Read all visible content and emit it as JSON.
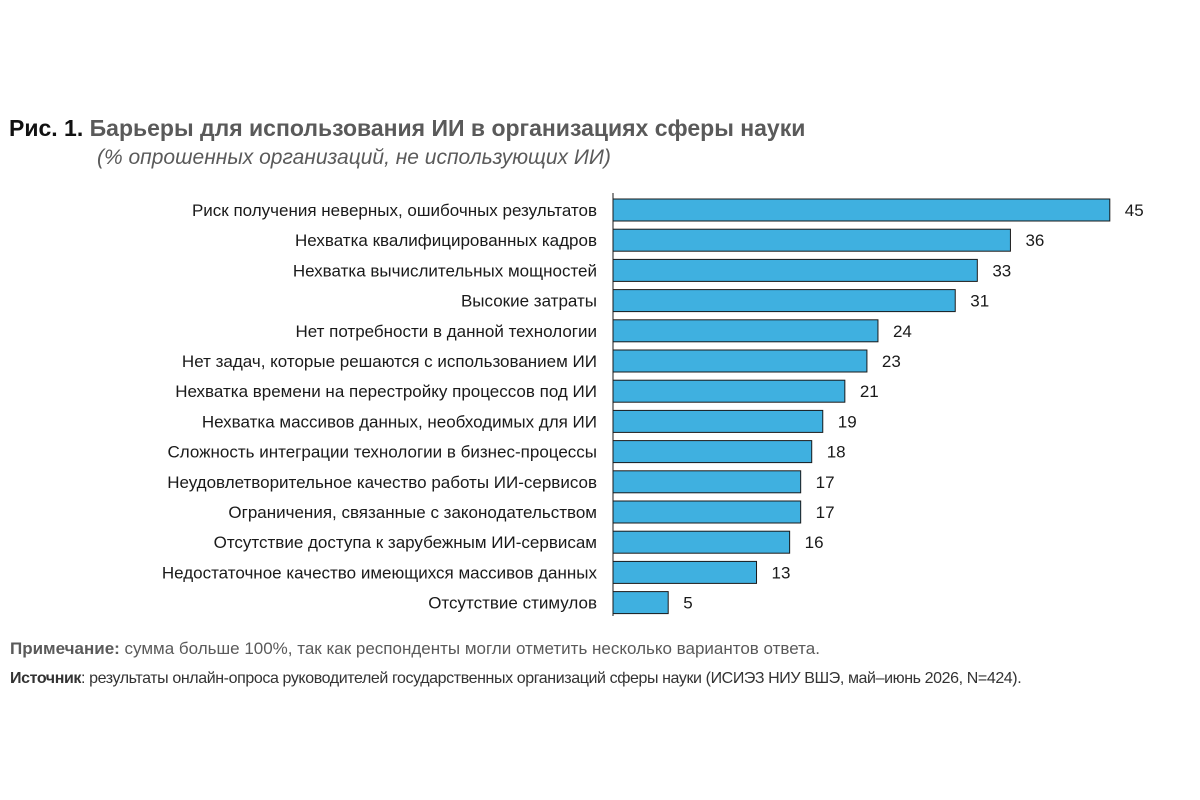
{
  "figure": {
    "number": "Рис. 1.",
    "title": "Барьеры для использования ИИ в организациях сферы науки",
    "subtitle": "(% опрошенных организаций, не использующих ИИ)"
  },
  "note": {
    "label": "Примечание:",
    "text": " сумма больше 100%, так как респонденты могли отметить несколько вариантов ответа."
  },
  "source": {
    "label": "Источник",
    "text": ": результаты онлайн-опроса руководителей государственных организаций сферы науки (ИСИЭЗ НИУ ВШЭ, май–июнь 2026, N=424)."
  },
  "colors": {
    "bar": "#3fb0e0",
    "bar_border": "#1a1a1a",
    "title_gray": "#5a5a5a"
  },
  "chart_data": {
    "type": "bar",
    "orientation": "horizontal",
    "categories": [
      "Риск получения неверных, ошибочных результатов",
      "Нехватка квалифицированных кадров",
      "Нехватка вычислительных мощностей",
      "Высокие затраты",
      "Нет потребности в данной технологии",
      "Нет задач, которые решаются с использованием ИИ",
      "Нехватка времени на перестройку процессов под ИИ",
      "Нехватка массивов данных, необходимых для ИИ",
      "Сложность интеграции технологии в бизнес-процессы",
      "Неудовлетворительное качество работы ИИ-сервисов",
      "Ограничения, связанные с законодательством",
      "Отсутствие доступа к зарубежным ИИ-сервисам",
      "Недостаточное качество имеющихся массивов данных",
      "Отсутствие стимулов"
    ],
    "values": [
      45,
      36,
      33,
      31,
      24,
      23,
      21,
      19,
      18,
      17,
      17,
      16,
      13,
      5
    ],
    "value_labels": [
      "45",
      "36",
      "33",
      "31",
      "24",
      "23",
      "21",
      "19",
      "18",
      "17",
      "17",
      "16",
      "13",
      "5"
    ],
    "xlim": [
      0,
      45
    ],
    "grid": false,
    "legend": "none"
  }
}
